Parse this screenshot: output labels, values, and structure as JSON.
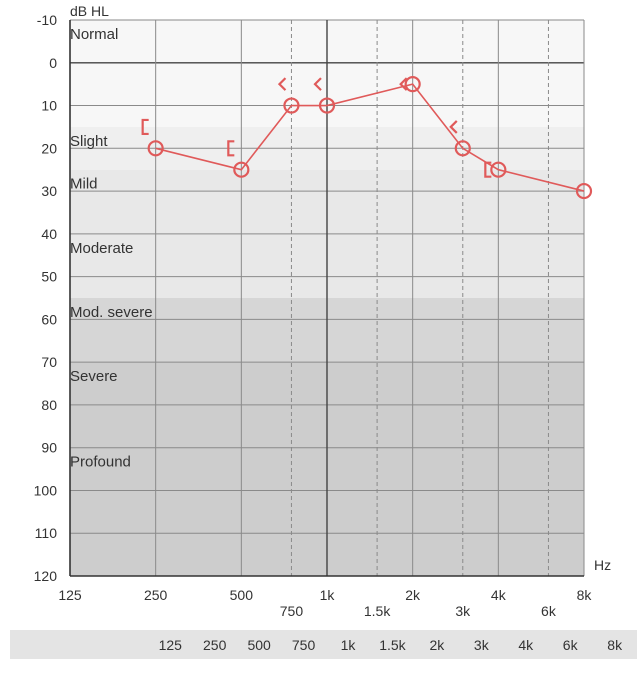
{
  "chart_data": {
    "type": "line",
    "ylabel": "dB HL",
    "xlabel": "Hz",
    "x_scale": "log2",
    "xlim": [
      125,
      8000
    ],
    "ylim": [
      -10,
      120
    ],
    "y_inverted": true,
    "grid": true,
    "y_ticks": [
      -10,
      0,
      10,
      20,
      30,
      40,
      50,
      60,
      70,
      80,
      90,
      100,
      110,
      120
    ],
    "x_ticks": [
      {
        "value": 125,
        "label": "125",
        "row": 1
      },
      {
        "value": 250,
        "label": "250",
        "row": 1
      },
      {
        "value": 500,
        "label": "500",
        "row": 1
      },
      {
        "value": 750,
        "label": "750",
        "row": 2
      },
      {
        "value": 1000,
        "label": "1k",
        "row": 1
      },
      {
        "value": 1500,
        "label": "1.5k",
        "row": 2
      },
      {
        "value": 2000,
        "label": "2k",
        "row": 1
      },
      {
        "value": 3000,
        "label": "3k",
        "row": 2
      },
      {
        "value": 4000,
        "label": "4k",
        "row": 1
      },
      {
        "value": 6000,
        "label": "6k",
        "row": 2
      },
      {
        "value": 8000,
        "label": "8k",
        "row": 1
      }
    ],
    "bands": [
      {
        "label": "Normal",
        "from": -10,
        "to": 15,
        "color": "#f7f7f7"
      },
      {
        "label": "Slight",
        "from": 15,
        "to": 25,
        "color": "#efefef"
      },
      {
        "label": "Mild",
        "from": 25,
        "to": 40,
        "color": "#e8e8e8"
      },
      {
        "label": "Moderate",
        "from": 40,
        "to": 55,
        "color": "#e8e8e8"
      },
      {
        "label": "Mod. severe",
        "from": 55,
        "to": 70,
        "color": "#d6d6d6"
      },
      {
        "label": "Severe",
        "from": 70,
        "to": 90,
        "color": "#cdcdcd"
      },
      {
        "label": "Profound",
        "from": 90,
        "to": 120,
        "color": "#cdcdcd"
      }
    ],
    "series": [
      {
        "color": "#e05a5a",
        "x": [
          250,
          500,
          750,
          1000,
          2000,
          3000,
          4000,
          8000
        ],
        "y": [
          20,
          25,
          10,
          10,
          5,
          20,
          25,
          30
        ],
        "marker": "circle"
      }
    ],
    "bone_masked": [
      {
        "x": 250,
        "y": 15
      },
      {
        "x": 500,
        "y": 20
      },
      {
        "x": 4000,
        "y": 25
      }
    ],
    "bone_unmasked": [
      {
        "x": 750,
        "y": 5
      },
      {
        "x": 1000,
        "y": 5
      },
      {
        "x": 2000,
        "y": 5
      },
      {
        "x": 3000,
        "y": 15
      }
    ]
  },
  "table": {
    "frequencies": [
      "125",
      "250",
      "500",
      "750",
      "1k",
      "1.5k",
      "2k",
      "3k",
      "4k",
      "6k",
      "8k"
    ]
  }
}
